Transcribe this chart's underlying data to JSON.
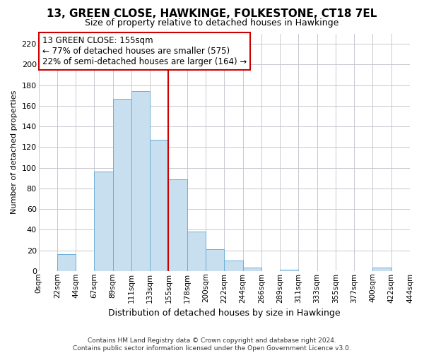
{
  "title": "13, GREEN CLOSE, HAWKINGE, FOLKESTONE, CT18 7EL",
  "subtitle": "Size of property relative to detached houses in Hawkinge",
  "xlabel": "Distribution of detached houses by size in Hawkinge",
  "ylabel": "Number of detached properties",
  "bar_color": "#c8dff0",
  "bar_edge_color": "#6baed6",
  "background_color": "#ffffff",
  "grid_color": "#c8c8d0",
  "annotation_box_edge": "#cc0000",
  "vline_color": "#cc0000",
  "annotation_title": "13 GREEN CLOSE: 155sqm",
  "annotation_line1": "← 77% of detached houses are smaller (575)",
  "annotation_line2": "22% of semi-detached houses are larger (164) →",
  "footer1": "Contains HM Land Registry data © Crown copyright and database right 2024.",
  "footer2": "Contains public sector information licensed under the Open Government Licence v3.0.",
  "tick_labels": [
    "0sqm",
    "22sqm",
    "44sqm",
    "67sqm",
    "89sqm",
    "111sqm",
    "133sqm",
    "155sqm",
    "178sqm",
    "200sqm",
    "222sqm",
    "244sqm",
    "266sqm",
    "289sqm",
    "311sqm",
    "333sqm",
    "355sqm",
    "377sqm",
    "400sqm",
    "422sqm",
    "444sqm"
  ],
  "bar_heights": [
    0,
    16,
    0,
    96,
    167,
    174,
    127,
    89,
    38,
    21,
    10,
    3,
    0,
    1,
    0,
    0,
    0,
    0,
    3,
    0
  ],
  "vline_tick_index": 7,
  "ylim": [
    0,
    230
  ],
  "yticks": [
    0,
    20,
    40,
    60,
    80,
    100,
    120,
    140,
    160,
    180,
    200,
    220
  ],
  "title_fontsize": 11,
  "subtitle_fontsize": 9,
  "ylabel_fontsize": 8,
  "xlabel_fontsize": 9,
  "tick_fontsize": 7.5,
  "ytick_fontsize": 8,
  "footer_fontsize": 6.5,
  "annotation_fontsize": 8.5
}
